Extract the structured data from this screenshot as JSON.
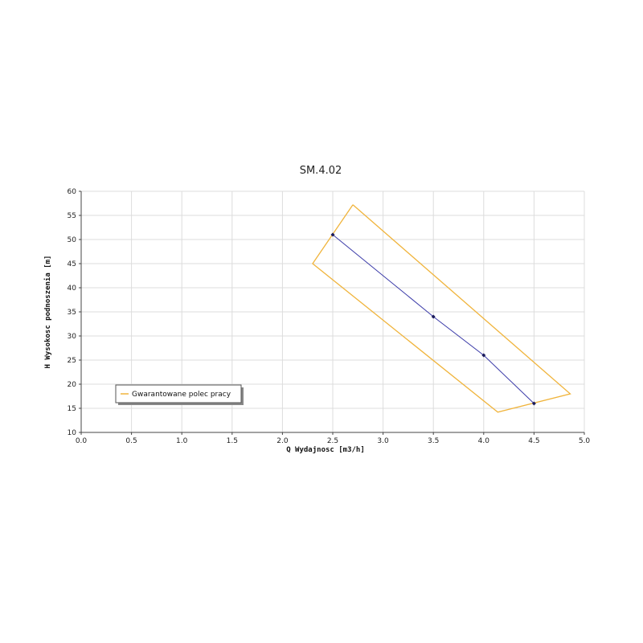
{
  "chart_data": {
    "type": "line",
    "title": "SM.4.02",
    "xlabel": "Q Wydajnosc [m3/h]",
    "ylabel": "H Wysokosc podnoszenia [m]",
    "xlim": [
      0.0,
      5.0
    ],
    "ylim": [
      10,
      60
    ],
    "x_ticks": [
      "0.0",
      "0.5",
      "1.0",
      "1.5",
      "2.0",
      "2.5",
      "3.0",
      "3.5",
      "4.0",
      "4.5",
      "5.0"
    ],
    "y_ticks": [
      "10",
      "15",
      "20",
      "25",
      "30",
      "35",
      "40",
      "45",
      "50",
      "55",
      "60"
    ],
    "grid": true,
    "legend_position": "bottom-left",
    "series": [
      {
        "name": "",
        "color": "#3a3aa8",
        "points": [
          {
            "x": 2.5,
            "y": 51
          },
          {
            "x": 3.5,
            "y": 34
          },
          {
            "x": 4.0,
            "y": 26
          },
          {
            "x": 4.5,
            "y": 16
          }
        ]
      },
      {
        "name": "Gwarantowane polec pracy",
        "color": "#f0b43c",
        "closed": true,
        "points": [
          {
            "x": 2.7,
            "y": 57.2
          },
          {
            "x": 4.86,
            "y": 18
          },
          {
            "x": 4.14,
            "y": 14.2
          },
          {
            "x": 2.3,
            "y": 45
          },
          {
            "x": 2.7,
            "y": 57.2
          }
        ]
      }
    ]
  }
}
